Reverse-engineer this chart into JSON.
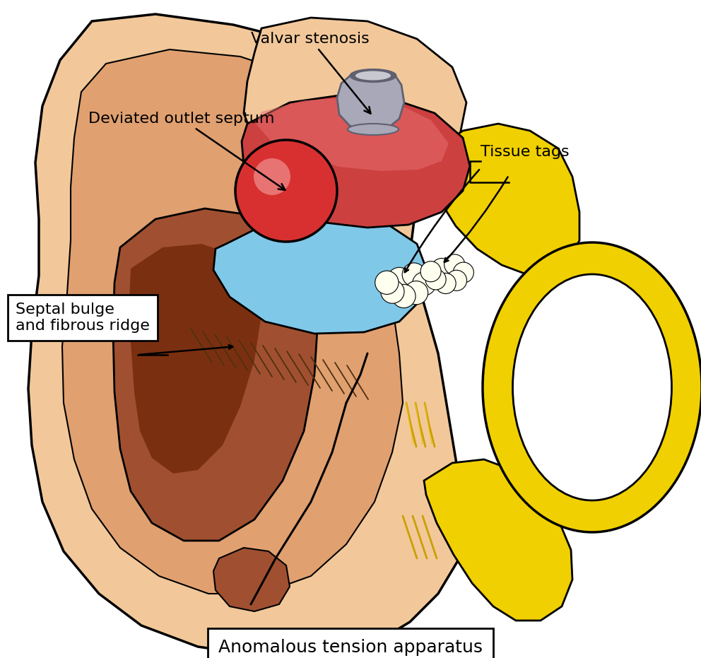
{
  "background_color": "#ffffff",
  "labels": {
    "valvar_stenosis": "Valvar stenosis",
    "deviated_outlet_septum": "Deviated outlet septum",
    "tissue_tags": "Tissue tags",
    "septal_bulge": "Septal bulge\nand fibrous ridge",
    "anomalous_tension": "Anomalous tension apparatus"
  },
  "colors": {
    "skin_light": "#F2C89A",
    "skin_medium": "#E0A070",
    "skin_dark": "#C07840",
    "brown_dark": "#7A3010",
    "brown_medium": "#A05030",
    "brown_light": "#C07850",
    "red_bright": "#D83030",
    "red_medium": "#CC4040",
    "red_light": "#E88080",
    "blue_light": "#80C8E8",
    "gray_valve": "#A8A8B8",
    "gray_dark": "#606070",
    "gray_light": "#C8C8D0",
    "yellow_ring": "#F0D000",
    "yellow_dark": "#C8A800",
    "white": "#FFFFFF",
    "cream": "#FFFFF0",
    "outline": "#000000",
    "tan": "#D4A060"
  },
  "figsize": [
    9.92,
    9.31
  ],
  "dpi": 100
}
